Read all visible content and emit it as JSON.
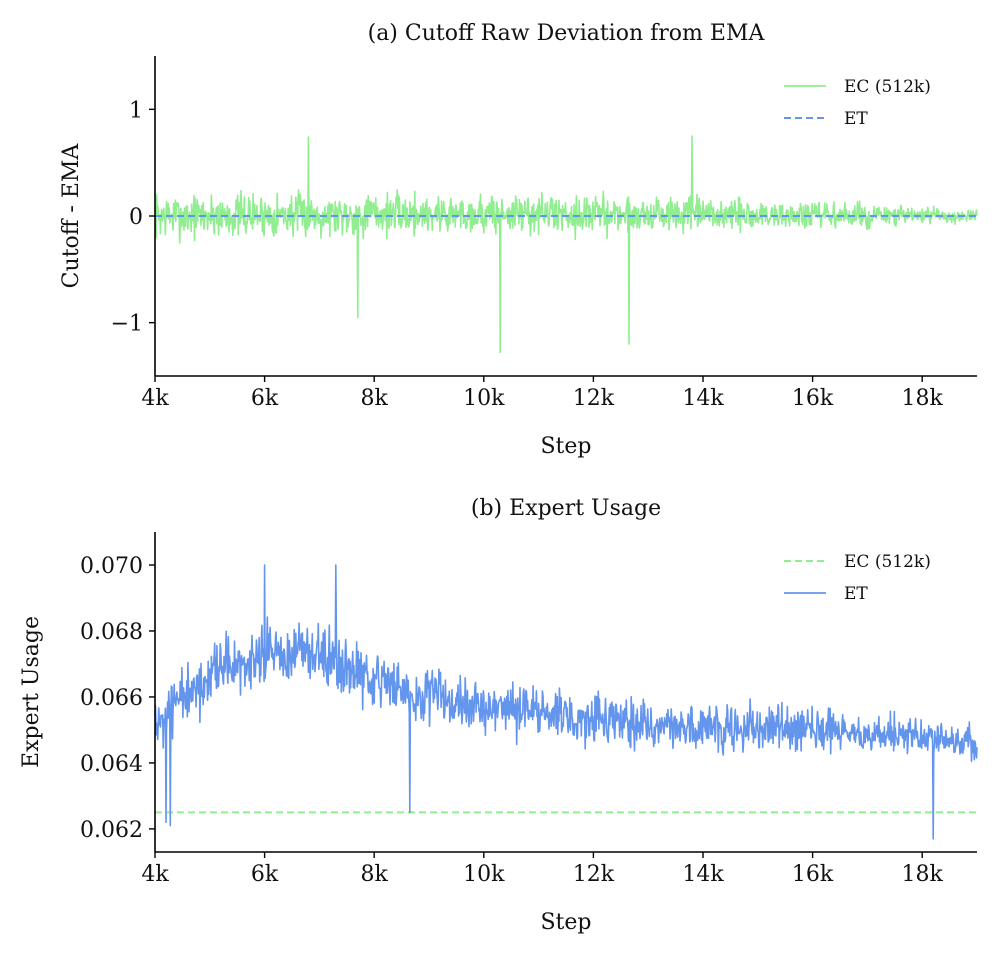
{
  "chart_data": [
    {
      "type": "line",
      "title": "(a) Cutoff Raw Deviation from EMA",
      "xlabel": "Step",
      "ylabel": "Cutoff - EMA",
      "xlim": [
        4000,
        19000
      ],
      "ylim": [
        -1.5,
        1.5
      ],
      "xticks": [
        4000,
        6000,
        8000,
        10000,
        12000,
        14000,
        16000,
        18000
      ],
      "xticklabels": [
        "4k",
        "6k",
        "8k",
        "10k",
        "12k",
        "14k",
        "16k",
        "18k"
      ],
      "yticks": [
        -1,
        0,
        1
      ],
      "yticklabels": [
        "−1",
        "0",
        "1"
      ],
      "legend_position": "top-right",
      "grid": false,
      "series": [
        {
          "name": "EC (512k)",
          "style": "solid",
          "color": "#90ee90",
          "noise": true,
          "x": [
            4000,
            8000,
            12000,
            16000,
            18000,
            19000
          ],
          "y_center": [
            0.0,
            0.02,
            0.02,
            0.0,
            0.0,
            0.0
          ],
          "y_amplitude": [
            0.3,
            0.28,
            0.26,
            0.2,
            0.12,
            0.08
          ],
          "spikes": [
            {
              "x": 7700,
              "y": -0.95
            },
            {
              "x": 10300,
              "y": -1.28
            },
            {
              "x": 12650,
              "y": -1.2
            },
            {
              "x": 6800,
              "y": 0.74
            },
            {
              "x": 13800,
              "y": 0.75
            }
          ]
        },
        {
          "name": "ET",
          "style": "dashed",
          "color": "#6495ed",
          "x": [
            4000,
            19000
          ],
          "y": [
            0,
            0
          ]
        }
      ]
    },
    {
      "type": "line",
      "title": "(b) Expert Usage",
      "xlabel": "Step",
      "ylabel": "Expert Usage",
      "xlim": [
        4000,
        19000
      ],
      "ylim": [
        0.0613,
        0.071
      ],
      "xticks": [
        4000,
        6000,
        8000,
        10000,
        12000,
        14000,
        16000,
        18000
      ],
      "xticklabels": [
        "4k",
        "6k",
        "8k",
        "10k",
        "12k",
        "14k",
        "16k",
        "18k"
      ],
      "yticks": [
        0.062,
        0.064,
        0.066,
        0.068,
        0.07
      ],
      "yticklabels": [
        "0.062",
        "0.064",
        "0.066",
        "0.068",
        "0.070"
      ],
      "legend_position": "top-right",
      "grid": false,
      "series": [
        {
          "name": "EC (512k)",
          "style": "dashed",
          "color": "#90ee90",
          "x": [
            4000,
            19000
          ],
          "y": [
            0.0625,
            0.0625
          ]
        },
        {
          "name": "ET",
          "style": "solid",
          "color": "#6495ed",
          "noise": true,
          "x": [
            4000,
            5000,
            6000,
            7000,
            8000,
            10000,
            12000,
            14000,
            16000,
            18000,
            19000
          ],
          "y_center": [
            0.0652,
            0.0665,
            0.0673,
            0.0672,
            0.0665,
            0.0657,
            0.0653,
            0.0651,
            0.065,
            0.0648,
            0.0645
          ],
          "y_amplitude": [
            0.0013,
            0.0014,
            0.0014,
            0.0013,
            0.0012,
            0.0011,
            0.0011,
            0.0011,
            0.001,
            0.0009,
            0.0008
          ],
          "spikes": [
            {
              "x": 4200,
              "y": 0.0622
            },
            {
              "x": 4280,
              "y": 0.0621
            },
            {
              "x": 7300,
              "y": 0.07
            },
            {
              "x": 6000,
              "y": 0.07
            },
            {
              "x": 8650,
              "y": 0.0625
            },
            {
              "x": 18200,
              "y": 0.0617
            }
          ]
        }
      ]
    }
  ]
}
